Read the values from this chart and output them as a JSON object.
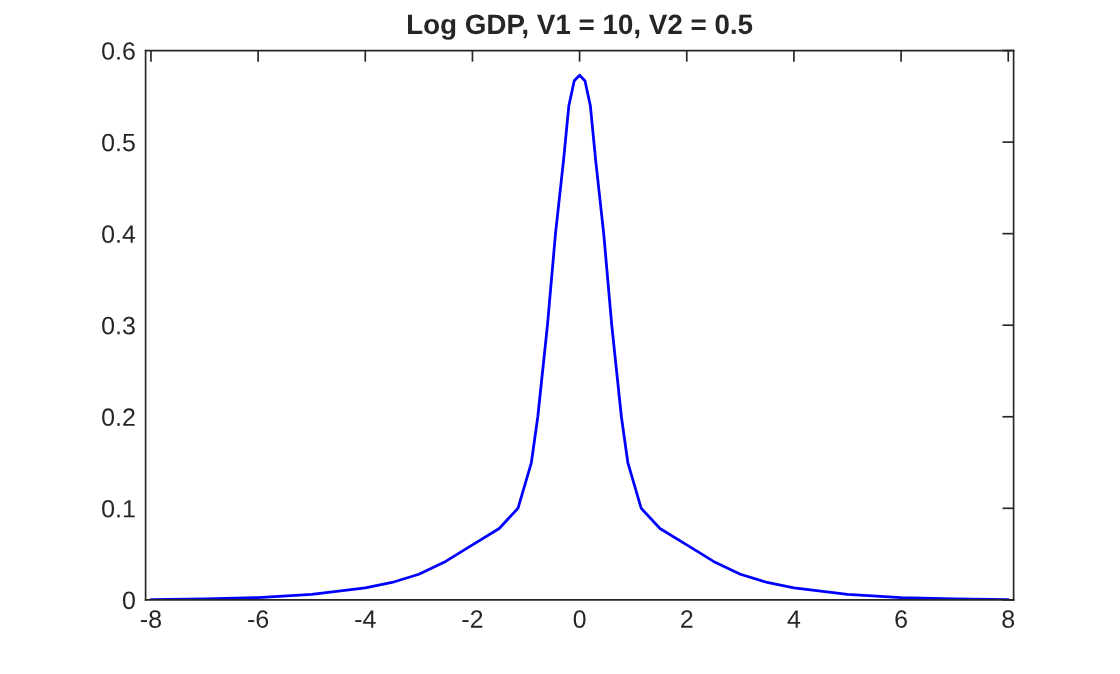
{
  "chart_data": {
    "type": "line",
    "title": "Log GDP, V1 = 10, V2 = 0.5",
    "x": [
      -8,
      -7,
      -6,
      -5,
      -4,
      -3.5,
      -3,
      -2.5,
      -2,
      -1.5,
      -1.15,
      -0.9,
      -0.78,
      -0.6,
      -0.45,
      -0.3,
      -0.25,
      -0.2,
      -0.1,
      0,
      0.1,
      0.2,
      0.25,
      0.3,
      0.45,
      0.6,
      0.78,
      0.9,
      1.15,
      1.5,
      2,
      2.5,
      3,
      3.5,
      4,
      5,
      6,
      7,
      8
    ],
    "series": [
      {
        "color": "#0000ff",
        "values": [
          0.0003,
          0.001,
          0.0025,
          0.006,
          0.013,
          0.019,
          0.028,
          0.042,
          0.06,
          0.078,
          0.1,
          0.15,
          0.2,
          0.3,
          0.4,
          0.48,
          0.51,
          0.54,
          0.567,
          0.573,
          0.567,
          0.54,
          0.51,
          0.48,
          0.4,
          0.3,
          0.2,
          0.15,
          0.1,
          0.078,
          0.06,
          0.042,
          0.028,
          0.019,
          0.013,
          0.006,
          0.0025,
          0.001,
          0.0003
        ]
      }
    ],
    "xlim": [
      -8.1,
      8.1
    ],
    "xticks": [
      -8,
      -6,
      -4,
      -2,
      0,
      2,
      4,
      6,
      8
    ],
    "ylim": [
      0,
      0.6
    ],
    "yticks": [
      0,
      0.1,
      0.2,
      0.3,
      0.4,
      0.5,
      0.6
    ],
    "grid": false,
    "legend": false,
    "marker": "none",
    "line_style": "solid"
  }
}
